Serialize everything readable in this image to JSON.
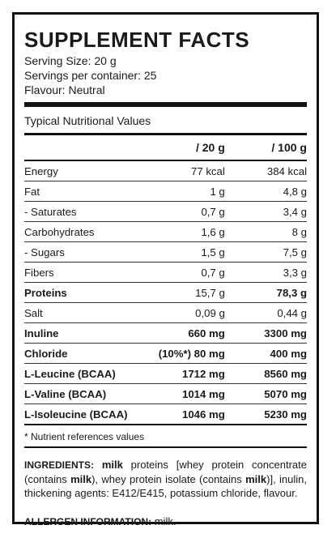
{
  "label": {
    "title": "SUPPLEMENT FACTS",
    "serving_size": "Serving Size: 20 g",
    "servings_per_container": "Servings per container: 25",
    "flavour": "Flavour: Neutral",
    "typical_values": "Typical Nutritional Values",
    "col_headers": [
      "",
      "/ 20 g",
      "/ 100 g"
    ],
    "rows": [
      {
        "name": "Energy",
        "per20": "77 kcal",
        "per100": "384 kcal",
        "bold": false
      },
      {
        "name": "Fat",
        "per20": "1 g",
        "per100": "4,8 g",
        "bold": false
      },
      {
        "name": "- Saturates",
        "per20": "0,7 g",
        "per100": "3,4 g",
        "bold": false
      },
      {
        "name": "Carbohydrates",
        "per20": "1,6 g",
        "per100": "8 g",
        "bold": false
      },
      {
        "name": "- Sugars",
        "per20": "1,5 g",
        "per100": "7,5 g",
        "bold": false
      },
      {
        "name": "Fibers",
        "per20": "0,7 g",
        "per100": "3,3 g",
        "bold": false
      },
      {
        "name": "Proteins",
        "per20": "15,7 g",
        "per100": "78,3  g",
        "bold": "name_and_100"
      },
      {
        "name": "Salt",
        "per20": "0,09 g",
        "per100": "0,44 g",
        "bold": false
      },
      {
        "name": "Inuline",
        "per20": "660 mg",
        "per100": "3300 mg",
        "bold": true
      },
      {
        "name": "Chloride",
        "per20": "(10%*) 80 mg",
        "per100": "400 mg",
        "bold": true
      },
      {
        "name": "L-Leucine (BCAA)",
        "per20": "1712 mg",
        "per100": "8560 mg",
        "bold": true
      },
      {
        "name": "L-Valine (BCAA)",
        "per20": "1014 mg",
        "per100": "5070 mg",
        "bold": true
      },
      {
        "name": "L-Isoleucine (BCAA)",
        "per20": "1046 mg",
        "per100": "5230 mg",
        "bold": true
      }
    ],
    "footnote": "* Nutrient references values",
    "ingredients_head": "INGREDIENTS:",
    "ingredients_parts": [
      {
        "t": " ",
        "b": false
      },
      {
        "t": "milk",
        "b": true
      },
      {
        "t": " proteins [whey protein concentrate (contains ",
        "b": false
      },
      {
        "t": "milk",
        "b": true
      },
      {
        "t": "), whey protein isolate (contains ",
        "b": false
      },
      {
        "t": "milk",
        "b": true
      },
      {
        "t": ")], inulin, thickening agents: E412/E415, potassium chloride, flavour.",
        "b": false
      }
    ],
    "allergen_head": "ALLERGEN INFORMATION:",
    "allergen_value": " milk."
  }
}
